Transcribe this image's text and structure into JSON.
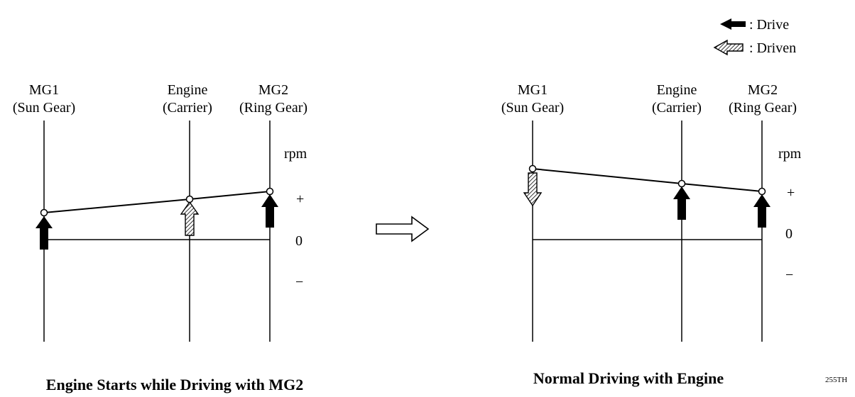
{
  "legend": {
    "drive": ": Drive",
    "driven": ": Driven"
  },
  "panels": [
    {
      "title": "Engine Starts while Driving with MG2",
      "gears": [
        {
          "name": "MG1",
          "sub": "(Sun Gear)",
          "arrow": "drive-up",
          "level": 0.35
        },
        {
          "name": "Engine",
          "sub": "(Carrier)",
          "arrow": "driven-up",
          "level": 0.62
        },
        {
          "name": "MG2",
          "sub": "(Ring Gear)",
          "arrow": "drive-up",
          "level": 0.8
        }
      ],
      "axis": {
        "unit": "rpm",
        "plus": "+",
        "zero": "0",
        "minus": "−"
      }
    },
    {
      "title": "Normal Driving with Engine",
      "gears": [
        {
          "name": "MG1",
          "sub": "(Sun Gear)",
          "arrow": "driven-down",
          "level": 1.2
        },
        {
          "name": "Engine",
          "sub": "(Carrier)",
          "arrow": "drive-up",
          "level": 0.95
        },
        {
          "name": "MG2",
          "sub": "(Ring Gear)",
          "arrow": "drive-up",
          "level": 0.8
        }
      ],
      "axis": {
        "unit": "rpm",
        "plus": "+",
        "zero": "0",
        "minus": "−"
      }
    }
  ],
  "transition_icon": "right-arrow-icon",
  "figure_code": "255TH"
}
